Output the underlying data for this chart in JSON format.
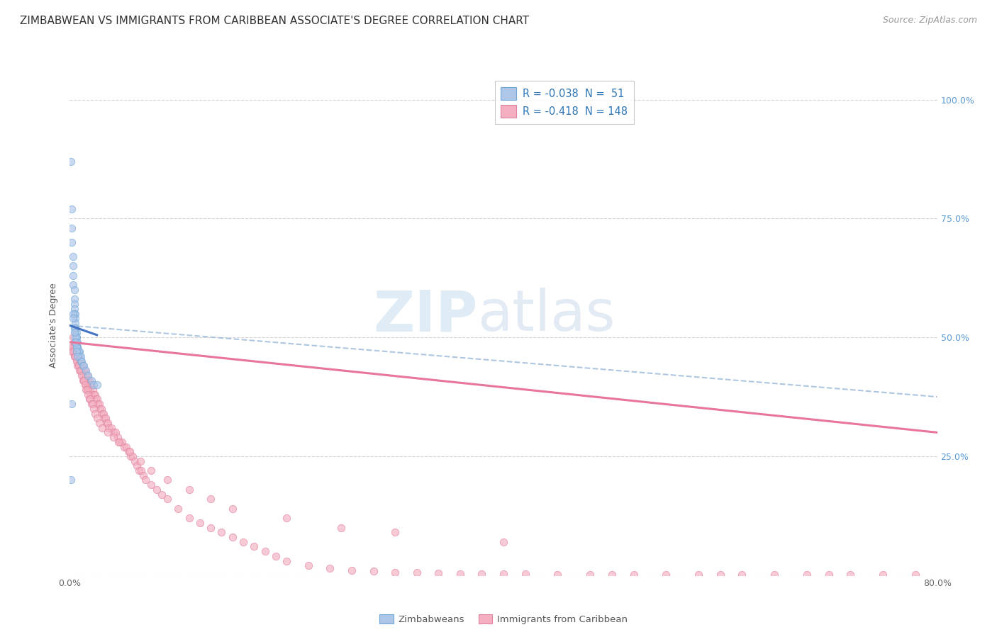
{
  "title": "ZIMBABWEAN VS IMMIGRANTS FROM CARIBBEAN ASSOCIATE'S DEGREE CORRELATION CHART",
  "source": "Source: ZipAtlas.com",
  "ylabel": "Associate's Degree",
  "right_yticks": [
    "100.0%",
    "75.0%",
    "50.0%",
    "25.0%"
  ],
  "right_ytick_vals": [
    1.0,
    0.75,
    0.5,
    0.25
  ],
  "watermark_zip": "ZIP",
  "watermark_atlas": "atlas",
  "zimbabwean_x": [
    0.001,
    0.002,
    0.002,
    0.002,
    0.003,
    0.003,
    0.003,
    0.003,
    0.004,
    0.004,
    0.004,
    0.004,
    0.004,
    0.005,
    0.005,
    0.005,
    0.005,
    0.005,
    0.005,
    0.006,
    0.006,
    0.006,
    0.006,
    0.007,
    0.007,
    0.007,
    0.008,
    0.008,
    0.009,
    0.009,
    0.01,
    0.01,
    0.011,
    0.012,
    0.013,
    0.015,
    0.017,
    0.02,
    0.022,
    0.025,
    0.001,
    0.002,
    0.003,
    0.004,
    0.005,
    0.006,
    0.003,
    0.004,
    0.005,
    0.006,
    0.007
  ],
  "zimbabwean_y": [
    0.87,
    0.77,
    0.73,
    0.7,
    0.67,
    0.65,
    0.63,
    0.61,
    0.6,
    0.58,
    0.57,
    0.56,
    0.55,
    0.55,
    0.54,
    0.53,
    0.52,
    0.52,
    0.51,
    0.51,
    0.5,
    0.5,
    0.49,
    0.49,
    0.48,
    0.48,
    0.47,
    0.47,
    0.47,
    0.46,
    0.46,
    0.45,
    0.45,
    0.44,
    0.44,
    0.43,
    0.42,
    0.41,
    0.4,
    0.4,
    0.2,
    0.36,
    0.55,
    0.52,
    0.5,
    0.48,
    0.54,
    0.51,
    0.49,
    0.47,
    0.46
  ],
  "caribbean_x": [
    0.001,
    0.002,
    0.003,
    0.003,
    0.004,
    0.004,
    0.005,
    0.005,
    0.006,
    0.006,
    0.007,
    0.007,
    0.008,
    0.008,
    0.009,
    0.009,
    0.01,
    0.01,
    0.011,
    0.011,
    0.012,
    0.012,
    0.013,
    0.013,
    0.014,
    0.014,
    0.015,
    0.015,
    0.016,
    0.016,
    0.017,
    0.017,
    0.018,
    0.018,
    0.019,
    0.019,
    0.02,
    0.021,
    0.022,
    0.023,
    0.024,
    0.025,
    0.026,
    0.027,
    0.028,
    0.029,
    0.03,
    0.031,
    0.032,
    0.033,
    0.034,
    0.035,
    0.036,
    0.038,
    0.04,
    0.042,
    0.044,
    0.046,
    0.048,
    0.05,
    0.052,
    0.054,
    0.056,
    0.058,
    0.06,
    0.062,
    0.064,
    0.066,
    0.068,
    0.07,
    0.075,
    0.08,
    0.085,
    0.09,
    0.1,
    0.11,
    0.12,
    0.13,
    0.14,
    0.15,
    0.16,
    0.17,
    0.18,
    0.19,
    0.2,
    0.22,
    0.24,
    0.26,
    0.28,
    0.3,
    0.32,
    0.34,
    0.36,
    0.38,
    0.4,
    0.42,
    0.45,
    0.48,
    0.5,
    0.52,
    0.55,
    0.58,
    0.6,
    0.62,
    0.65,
    0.68,
    0.7,
    0.72,
    0.75,
    0.78,
    0.003,
    0.004,
    0.005,
    0.006,
    0.007,
    0.008,
    0.009,
    0.01,
    0.011,
    0.012,
    0.013,
    0.014,
    0.015,
    0.016,
    0.017,
    0.018,
    0.019,
    0.02,
    0.021,
    0.022,
    0.023,
    0.025,
    0.027,
    0.03,
    0.035,
    0.04,
    0.045,
    0.055,
    0.065,
    0.075,
    0.09,
    0.11,
    0.13,
    0.15,
    0.2,
    0.25,
    0.3,
    0.4
  ],
  "caribbean_y": [
    0.48,
    0.47,
    0.5,
    0.48,
    0.49,
    0.47,
    0.48,
    0.46,
    0.47,
    0.46,
    0.46,
    0.45,
    0.46,
    0.44,
    0.45,
    0.44,
    0.45,
    0.43,
    0.44,
    0.43,
    0.44,
    0.42,
    0.43,
    0.41,
    0.43,
    0.41,
    0.42,
    0.4,
    0.42,
    0.4,
    0.41,
    0.39,
    0.41,
    0.39,
    0.4,
    0.38,
    0.4,
    0.39,
    0.38,
    0.38,
    0.37,
    0.37,
    0.36,
    0.36,
    0.35,
    0.35,
    0.34,
    0.34,
    0.33,
    0.33,
    0.32,
    0.32,
    0.31,
    0.31,
    0.3,
    0.3,
    0.29,
    0.28,
    0.28,
    0.27,
    0.27,
    0.26,
    0.25,
    0.25,
    0.24,
    0.23,
    0.22,
    0.22,
    0.21,
    0.2,
    0.19,
    0.18,
    0.17,
    0.16,
    0.14,
    0.12,
    0.11,
    0.1,
    0.09,
    0.08,
    0.07,
    0.06,
    0.05,
    0.04,
    0.03,
    0.02,
    0.015,
    0.01,
    0.008,
    0.006,
    0.005,
    0.004,
    0.003,
    0.003,
    0.002,
    0.002,
    0.001,
    0.001,
    0.001,
    0.001,
    0.001,
    0.001,
    0.001,
    0.001,
    0.001,
    0.001,
    0.001,
    0.001,
    0.001,
    0.001,
    0.47,
    0.46,
    0.46,
    0.45,
    0.44,
    0.44,
    0.43,
    0.43,
    0.42,
    0.41,
    0.41,
    0.4,
    0.39,
    0.39,
    0.38,
    0.37,
    0.37,
    0.36,
    0.36,
    0.35,
    0.34,
    0.33,
    0.32,
    0.31,
    0.3,
    0.29,
    0.28,
    0.26,
    0.24,
    0.22,
    0.2,
    0.18,
    0.16,
    0.14,
    0.12,
    0.1,
    0.09,
    0.07
  ],
  "zim_line_x": [
    0.0,
    0.025
  ],
  "zim_line_y": [
    0.525,
    0.505
  ],
  "carib_line_x": [
    0.0,
    0.8
  ],
  "carib_line_y": [
    0.49,
    0.3
  ],
  "dash_line_x": [
    0.0,
    0.8
  ],
  "dash_line_y": [
    0.525,
    0.375
  ],
  "xlim": [
    0.0,
    0.8
  ],
  "ylim": [
    0.0,
    1.05
  ],
  "bg_color": "#ffffff",
  "scatter_alpha": 0.65,
  "scatter_size": 55,
  "zim_color": "#aec6e8",
  "zim_edge_color": "#6fa8d8",
  "carib_color": "#f4b0c0",
  "carib_edge_color": "#e080a0",
  "zim_line_color": "#4472c4",
  "carib_line_color": "#e8759a",
  "dash_line_color": "#9ab8d8",
  "grid_color": "#d0d0d0",
  "title_fontsize": 11,
  "source_fontsize": 9,
  "axis_label_fontsize": 9,
  "tick_fontsize": 9,
  "legend_fontsize": 10.5
}
